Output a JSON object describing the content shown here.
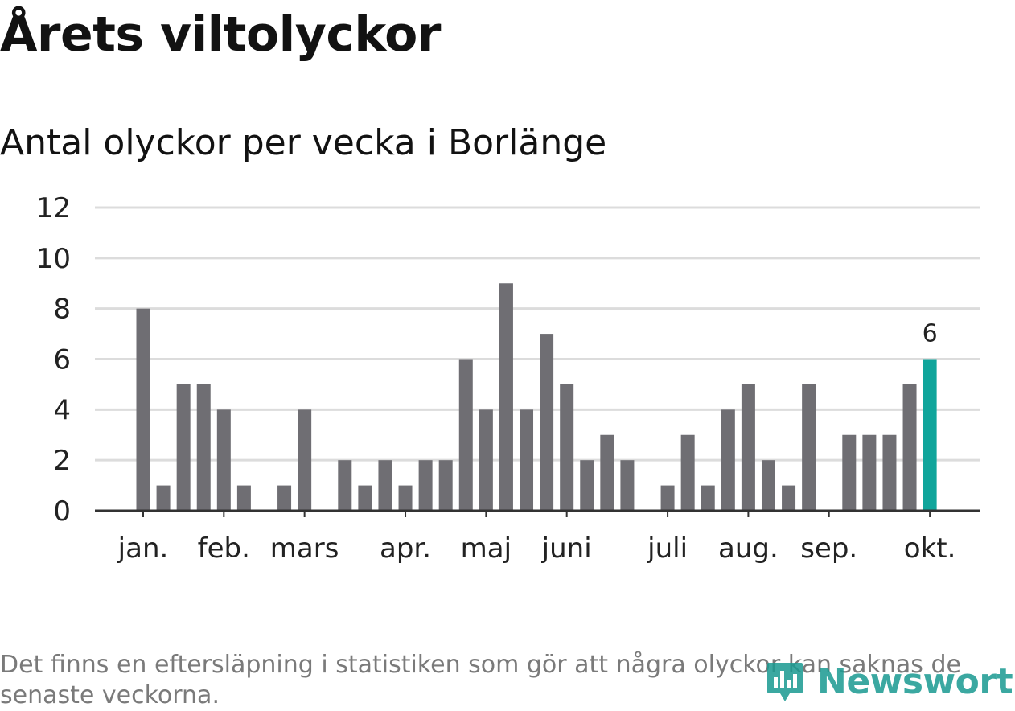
{
  "title": "Årets viltolyckor",
  "subtitle": "Antal olyckor per vecka i Borlänge",
  "footnote": "Det finns en eftersläpning i statistiken som gör att några olyckor kan saknas de senaste veckorna.",
  "logo": {
    "text": "Newsworthy",
    "icon": "newsworthy-logo-icon"
  },
  "colors": {
    "bar": "#6f6e73",
    "highlight": "#10a59b",
    "grid": "#dcdcdc",
    "axis": "#333333",
    "text": "#222222"
  },
  "chart_data": {
    "type": "bar",
    "title": "Årets viltolyckor",
    "subtitle": "Antal olyckor per vecka i Borlänge",
    "xlabel": "",
    "ylabel": "",
    "ylim": [
      0,
      12
    ],
    "yticks": [
      0,
      2,
      4,
      6,
      8,
      10,
      12
    ],
    "grid": true,
    "x_tick_labels": [
      {
        "label": "jan.",
        "week": 1
      },
      {
        "label": "feb.",
        "week": 5
      },
      {
        "label": "mars",
        "week": 9
      },
      {
        "label": "apr.",
        "week": 14
      },
      {
        "label": "maj",
        "week": 18
      },
      {
        "label": "juni",
        "week": 22
      },
      {
        "label": "juli",
        "week": 27
      },
      {
        "label": "aug.",
        "week": 31
      },
      {
        "label": "sep.",
        "week": 35
      },
      {
        "label": "okt.",
        "week": 40
      }
    ],
    "weeks": [
      1,
      2,
      3,
      4,
      5,
      6,
      7,
      8,
      9,
      10,
      11,
      12,
      13,
      14,
      15,
      16,
      17,
      18,
      19,
      20,
      21,
      22,
      23,
      24,
      25,
      26,
      27,
      28,
      29,
      30,
      31,
      32,
      33,
      34,
      35,
      36,
      37,
      38,
      39,
      40
    ],
    "values": [
      8,
      1,
      5,
      5,
      4,
      1,
      0,
      1,
      4,
      0,
      2,
      1,
      2,
      1,
      2,
      2,
      6,
      4,
      9,
      4,
      7,
      5,
      2,
      3,
      2,
      0,
      1,
      3,
      1,
      4,
      5,
      2,
      1,
      5,
      0,
      3,
      3,
      3,
      5,
      6
    ],
    "highlight_index": 39,
    "highlight_label": "6"
  }
}
